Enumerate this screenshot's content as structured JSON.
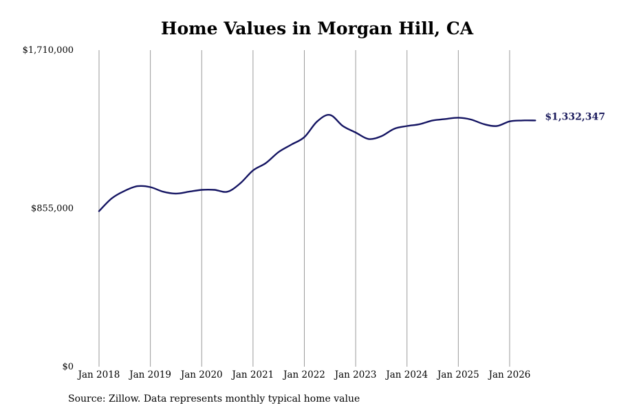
{
  "chart_data": {
    "type": "line",
    "title": "Home Values in Morgan Hill, CA",
    "source": "Source: Zillow. Data represents monthly typical home value",
    "end_label": "$1,332,347",
    "line_color": "#141462",
    "grid_color": "#9a9a9a",
    "y_ticks": [
      {
        "value": 0,
        "label": "$0"
      },
      {
        "value": 855000,
        "label": "$855,000"
      },
      {
        "value": 1710000,
        "label": "$1,710,000"
      }
    ],
    "ylim": [
      0,
      1710000
    ],
    "x_ticks": [
      "Jan 2018",
      "Jan 2019",
      "Jan 2020",
      "Jan 2021",
      "Jan 2022",
      "Jan 2023",
      "Jan 2024",
      "Jan 2025",
      "Jan 2026"
    ],
    "grid": "vertical",
    "series": [
      {
        "x": [
          "2018-01",
          "2018-04",
          "2018-07",
          "2018-10",
          "2019-01",
          "2019-04",
          "2019-07",
          "2019-10",
          "2020-01",
          "2020-04",
          "2020-07",
          "2020-10",
          "2021-01",
          "2021-04",
          "2021-07",
          "2021-10",
          "2022-01",
          "2022-04",
          "2022-07",
          "2022-10",
          "2023-01",
          "2023-04",
          "2023-07",
          "2023-10",
          "2024-01",
          "2024-04",
          "2024-07",
          "2024-10",
          "2025-01",
          "2025-04",
          "2025-07",
          "2025-10",
          "2026-01",
          "2026-04",
          "2026-07"
        ],
        "values": [
          840000,
          910000,
          950000,
          975000,
          970000,
          945000,
          935000,
          945000,
          955000,
          955000,
          945000,
          990000,
          1060000,
          1100000,
          1160000,
          1200000,
          1240000,
          1325000,
          1360000,
          1300000,
          1265000,
          1230000,
          1245000,
          1285000,
          1300000,
          1310000,
          1330000,
          1338000,
          1345000,
          1335000,
          1310000,
          1300000,
          1325000,
          1330000,
          1330000
        ]
      }
    ]
  }
}
